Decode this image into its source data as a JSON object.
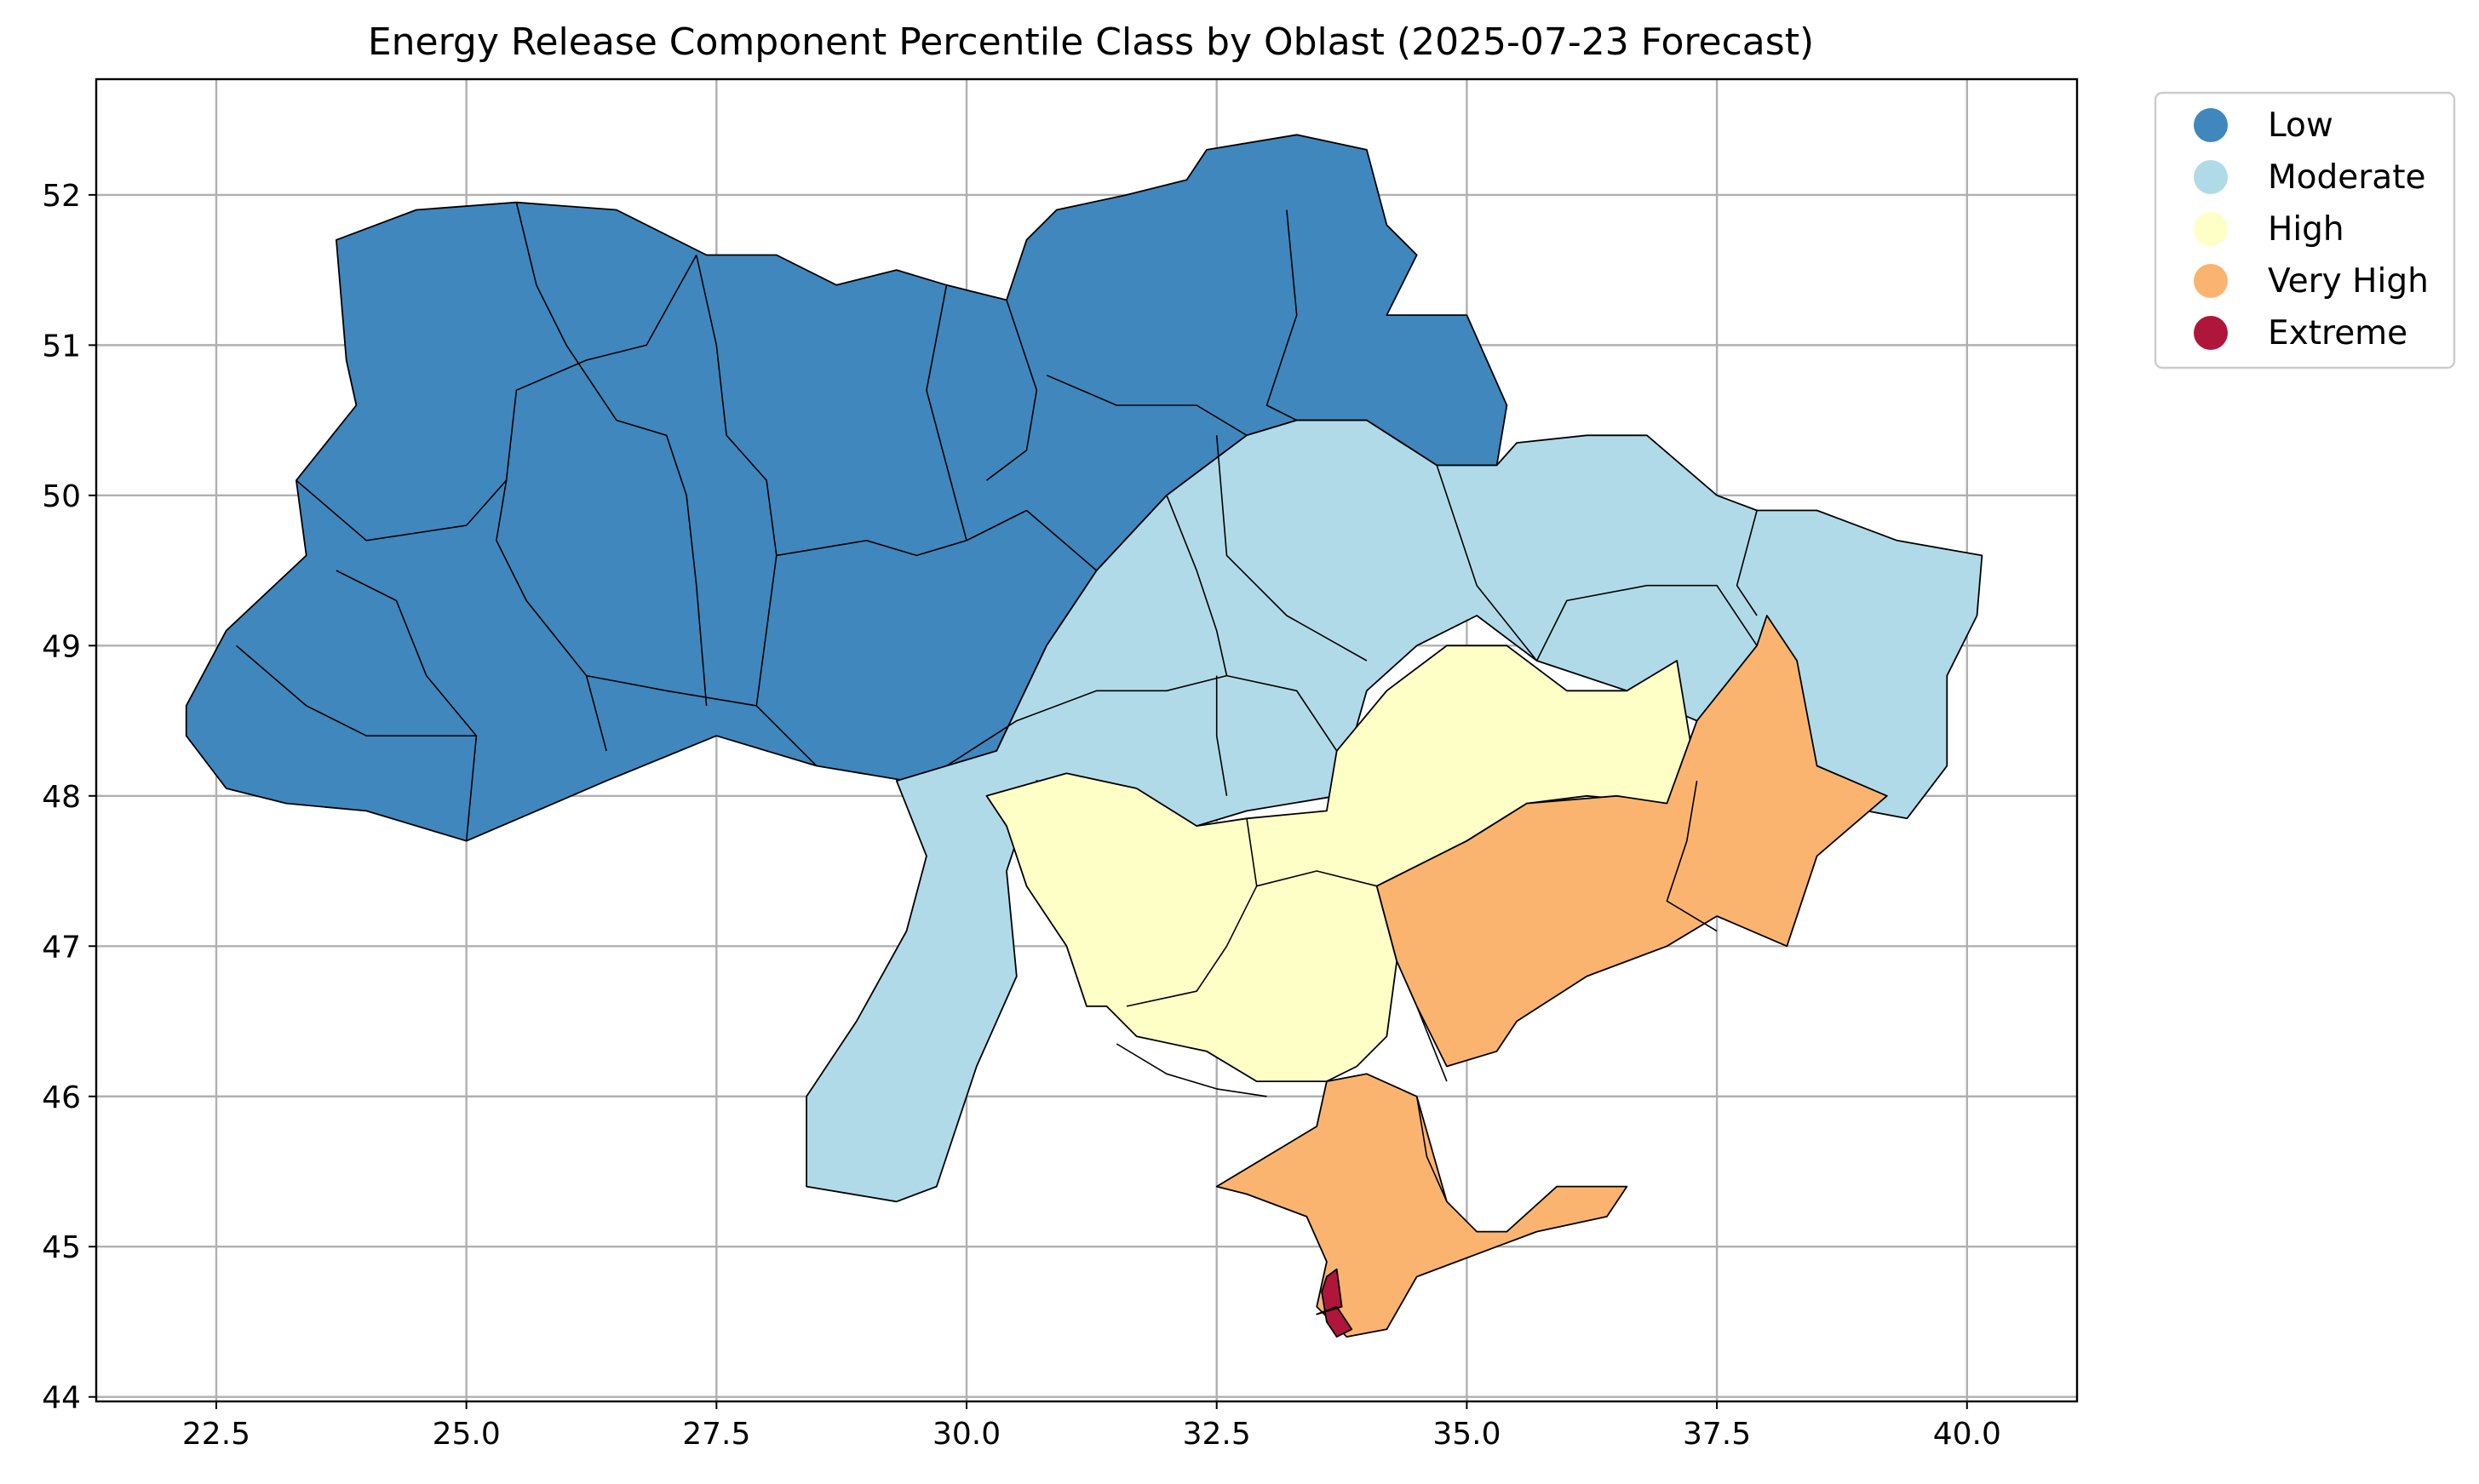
{
  "title": "Energy Release Component Percentile Class by Oblast (2025-07-23 Forecast)",
  "axes": {
    "x_ticks": [
      "22.5",
      "25.0",
      "27.5",
      "30.0",
      "32.5",
      "35.0",
      "37.5",
      "40.0"
    ],
    "y_ticks": [
      "44",
      "45",
      "46",
      "47",
      "48",
      "49",
      "50",
      "51",
      "52"
    ]
  },
  "legend": {
    "placement": "outside upper-right",
    "items": [
      {
        "label": "Low",
        "color": "#4087bd"
      },
      {
        "label": "Moderate",
        "color": "#b1dae9"
      },
      {
        "label": "High",
        "color": "#fefec7"
      },
      {
        "label": "Very High",
        "color": "#fbb46f"
      },
      {
        "label": "Extreme",
        "color": "#b0163c"
      }
    ]
  },
  "chart_data": {
    "type": "choropleth",
    "title": "Energy Release Component Percentile Class by Oblast (2025-07-23 Forecast)",
    "xlim": [
      21.3,
      41.1
    ],
    "ylim": [
      43.97,
      52.77
    ],
    "x_ticks": [
      22.5,
      25.0,
      27.5,
      30.0,
      32.5,
      35.0,
      37.5,
      40.0
    ],
    "y_ticks": [
      44,
      45,
      46,
      47,
      48,
      49,
      50,
      51,
      52
    ],
    "grid": true,
    "legend_position": "outside upper-right",
    "classes": [
      "Low",
      "Moderate",
      "High",
      "Very High",
      "Extreme"
    ],
    "regions": [
      {
        "class": "Low",
        "color": "#4087bd",
        "coords": [
          [
            22.2,
            48.6
          ],
          [
            22.6,
            49.1
          ],
          [
            23.4,
            49.6
          ],
          [
            23.3,
            50.1
          ],
          [
            23.9,
            50.6
          ],
          [
            23.8,
            50.9
          ],
          [
            23.7,
            51.7
          ],
          [
            24.5,
            51.9
          ],
          [
            25.5,
            51.95
          ],
          [
            26.5,
            51.9
          ],
          [
            27.4,
            51.6
          ],
          [
            28.1,
            51.6
          ],
          [
            28.7,
            51.4
          ],
          [
            29.3,
            51.5
          ],
          [
            29.8,
            51.4
          ],
          [
            30.4,
            51.3
          ],
          [
            30.6,
            51.7
          ],
          [
            30.9,
            51.9
          ],
          [
            31.6,
            52.0
          ],
          [
            32.2,
            52.1
          ],
          [
            32.4,
            52.3
          ],
          [
            33.3,
            52.4
          ],
          [
            34.0,
            52.3
          ],
          [
            34.2,
            51.8
          ],
          [
            34.5,
            51.6
          ],
          [
            34.2,
            51.2
          ],
          [
            35.0,
            51.2
          ],
          [
            35.4,
            50.6
          ],
          [
            35.3,
            50.2
          ],
          [
            34.7,
            50.2
          ],
          [
            34.0,
            50.5
          ],
          [
            33.3,
            50.5
          ],
          [
            32.8,
            50.4
          ],
          [
            32.0,
            50.0
          ],
          [
            31.3,
            49.5
          ],
          [
            30.8,
            49.0
          ],
          [
            30.3,
            48.3
          ],
          [
            29.4,
            48.1
          ],
          [
            28.5,
            48.2
          ],
          [
            27.5,
            48.4
          ],
          [
            26.4,
            48.1
          ],
          [
            25.7,
            47.9
          ],
          [
            25.0,
            47.7
          ],
          [
            24.0,
            47.9
          ],
          [
            23.2,
            47.95
          ],
          [
            22.6,
            48.05
          ],
          [
            22.2,
            48.4
          ]
        ]
      },
      {
        "class": "Moderate",
        "color": "#b1dae9",
        "coords": [
          [
            30.3,
            48.3
          ],
          [
            30.8,
            49.0
          ],
          [
            31.3,
            49.5
          ],
          [
            32.0,
            50.0
          ],
          [
            32.8,
            50.4
          ],
          [
            33.3,
            50.5
          ],
          [
            34.0,
            50.5
          ],
          [
            34.7,
            50.2
          ],
          [
            35.3,
            50.2
          ],
          [
            35.5,
            50.35
          ],
          [
            36.2,
            50.4
          ],
          [
            36.8,
            50.4
          ],
          [
            37.5,
            50.0
          ],
          [
            37.9,
            49.9
          ],
          [
            38.5,
            49.9
          ],
          [
            39.3,
            49.7
          ],
          [
            40.15,
            49.6
          ],
          [
            40.1,
            49.2
          ],
          [
            39.8,
            48.8
          ],
          [
            39.8,
            48.2
          ],
          [
            39.4,
            47.85
          ],
          [
            38.2,
            48.0
          ],
          [
            37.8,
            47.8
          ],
          [
            37.3,
            48.5
          ],
          [
            36.6,
            48.7
          ],
          [
            35.7,
            48.9
          ],
          [
            35.1,
            49.2
          ],
          [
            34.5,
            49.0
          ],
          [
            34.0,
            48.7
          ],
          [
            33.7,
            48.0
          ],
          [
            32.8,
            47.9
          ],
          [
            32.3,
            47.8
          ],
          [
            31.3,
            48.0
          ],
          [
            30.7,
            48.1
          ],
          [
            30.4,
            47.5
          ],
          [
            30.5,
            46.8
          ],
          [
            30.1,
            46.2
          ],
          [
            29.7,
            45.4
          ],
          [
            29.3,
            45.3
          ],
          [
            28.4,
            45.4
          ],
          [
            28.4,
            46.0
          ],
          [
            28.9,
            46.5
          ],
          [
            29.4,
            47.1
          ],
          [
            29.6,
            47.6
          ],
          [
            29.3,
            48.1
          ],
          [
            29.8,
            48.2
          ]
        ]
      },
      {
        "class": "High",
        "color": "#fefec7",
        "coords": [
          [
            30.2,
            48.0
          ],
          [
            31.0,
            48.15
          ],
          [
            31.7,
            48.05
          ],
          [
            32.3,
            47.8
          ],
          [
            32.8,
            47.85
          ],
          [
            33.6,
            47.9
          ],
          [
            33.7,
            48.3
          ],
          [
            34.2,
            48.7
          ],
          [
            34.8,
            49.0
          ],
          [
            35.4,
            49.0
          ],
          [
            36.0,
            48.7
          ],
          [
            36.6,
            48.7
          ],
          [
            37.1,
            48.9
          ],
          [
            37.3,
            48.1
          ],
          [
            37.0,
            47.95
          ],
          [
            36.2,
            48.0
          ],
          [
            35.6,
            47.95
          ],
          [
            35.0,
            47.7
          ],
          [
            34.1,
            47.4
          ],
          [
            34.3,
            46.9
          ],
          [
            34.2,
            46.4
          ],
          [
            33.9,
            46.2
          ],
          [
            33.6,
            46.1
          ],
          [
            32.9,
            46.1
          ],
          [
            32.4,
            46.3
          ],
          [
            31.7,
            46.4
          ],
          [
            31.4,
            46.6
          ],
          [
            31.2,
            46.6
          ],
          [
            31.0,
            47.0
          ],
          [
            30.6,
            47.4
          ],
          [
            30.4,
            47.8
          ]
        ]
      },
      {
        "class": "Very High",
        "color": "#fbb46f",
        "coords": [
          [
            34.1,
            47.4
          ],
          [
            35.0,
            47.7
          ],
          [
            35.6,
            47.95
          ],
          [
            36.5,
            48.0
          ],
          [
            37.0,
            47.95
          ],
          [
            37.3,
            48.5
          ],
          [
            37.9,
            49.0
          ],
          [
            38.0,
            49.2
          ],
          [
            38.3,
            48.9
          ],
          [
            38.5,
            48.2
          ],
          [
            39.2,
            48.0
          ],
          [
            38.5,
            47.6
          ],
          [
            38.2,
            47.0
          ],
          [
            37.5,
            47.2
          ],
          [
            37.0,
            47.0
          ],
          [
            36.2,
            46.8
          ],
          [
            35.5,
            46.5
          ],
          [
            35.3,
            46.3
          ],
          [
            34.8,
            46.2
          ],
          [
            34.5,
            46.6
          ],
          [
            34.3,
            46.9
          ]
        ]
      },
      {
        "class": "Very High",
        "color": "#fbb46f",
        "coords": [
          [
            32.5,
            45.4
          ],
          [
            33.0,
            45.6
          ],
          [
            33.5,
            45.8
          ],
          [
            33.6,
            46.1
          ],
          [
            34.0,
            46.15
          ],
          [
            34.5,
            46.0
          ],
          [
            34.8,
            45.3
          ],
          [
            35.1,
            45.1
          ],
          [
            35.4,
            45.1
          ],
          [
            35.9,
            45.4
          ],
          [
            36.6,
            45.4
          ],
          [
            36.4,
            45.2
          ],
          [
            35.7,
            45.1
          ],
          [
            35.3,
            45.0
          ],
          [
            34.5,
            44.8
          ],
          [
            34.2,
            44.45
          ],
          [
            33.8,
            44.4
          ],
          [
            33.5,
            44.6
          ],
          [
            33.6,
            44.9
          ],
          [
            33.4,
            45.2
          ],
          [
            32.8,
            45.35
          ]
        ]
      },
      {
        "class": "Extreme",
        "color": "#b0163c",
        "coords": [
          [
            33.5,
            44.55
          ],
          [
            33.7,
            44.6
          ],
          [
            33.85,
            44.45
          ],
          [
            33.7,
            44.4
          ],
          [
            33.6,
            44.5
          ],
          [
            33.55,
            44.7
          ],
          [
            33.6,
            44.8
          ],
          [
            33.7,
            44.85
          ],
          [
            33.75,
            44.6
          ]
        ]
      }
    ],
    "boundaries": [
      [
        [
          23.3,
          50.1
        ],
        [
          24.0,
          49.7
        ],
        [
          25.0,
          49.8
        ],
        [
          25.4,
          50.1
        ],
        [
          25.5,
          50.7
        ],
        [
          26.2,
          50.9
        ],
        [
          26.8,
          51.0
        ],
        [
          27.3,
          51.6
        ]
      ],
      [
        [
          25.5,
          51.95
        ],
        [
          25.7,
          51.4
        ],
        [
          26.0,
          51.0
        ],
        [
          26.5,
          50.5
        ]
      ],
      [
        [
          23.7,
          49.5
        ],
        [
          24.3,
          49.3
        ],
        [
          24.6,
          48.8
        ],
        [
          25.1,
          48.4
        ],
        [
          25.0,
          47.7
        ]
      ],
      [
        [
          22.7,
          49.0
        ],
        [
          23.4,
          48.6
        ],
        [
          24.0,
          48.4
        ],
        [
          25.1,
          48.4
        ]
      ],
      [
        [
          25.4,
          50.1
        ],
        [
          25.3,
          49.7
        ],
        [
          25.6,
          49.3
        ],
        [
          26.2,
          48.8
        ],
        [
          26.4,
          48.3
        ]
      ],
      [
        [
          26.2,
          48.8
        ],
        [
          27.0,
          48.7
        ],
        [
          27.9,
          48.6
        ],
        [
          28.5,
          48.2
        ]
      ],
      [
        [
          26.5,
          50.5
        ],
        [
          27.0,
          50.4
        ],
        [
          27.2,
          50.0
        ],
        [
          27.3,
          49.4
        ],
        [
          27.4,
          48.6
        ]
      ],
      [
        [
          27.3,
          51.6
        ],
        [
          27.5,
          51.0
        ],
        [
          27.6,
          50.4
        ],
        [
          28.0,
          50.1
        ],
        [
          28.1,
          49.6
        ],
        [
          27.9,
          48.6
        ]
      ],
      [
        [
          28.1,
          49.6
        ],
        [
          29.0,
          49.7
        ],
        [
          29.5,
          49.6
        ],
        [
          30.0,
          49.7
        ],
        [
          30.6,
          49.9
        ],
        [
          31.3,
          49.5
        ]
      ],
      [
        [
          29.8,
          51.4
        ],
        [
          29.6,
          50.7
        ],
        [
          29.8,
          50.2
        ],
        [
          30.0,
          49.7
        ]
      ],
      [
        [
          30.4,
          51.3
        ],
        [
          30.7,
          50.7
        ],
        [
          30.6,
          50.3
        ],
        [
          30.2,
          50.1
        ]
      ],
      [
        [
          30.8,
          50.8
        ],
        [
          31.5,
          50.6
        ],
        [
          32.3,
          50.6
        ],
        [
          32.8,
          50.4
        ]
      ],
      [
        [
          33.2,
          51.9
        ],
        [
          33.3,
          51.2
        ],
        [
          33.0,
          50.6
        ],
        [
          33.3,
          50.5
        ]
      ],
      [
        [
          32.0,
          50.0
        ],
        [
          32.3,
          49.5
        ],
        [
          32.5,
          49.1
        ],
        [
          32.6,
          48.8
        ]
      ],
      [
        [
          29.8,
          48.2
        ],
        [
          30.5,
          48.5
        ],
        [
          31.3,
          48.7
        ],
        [
          32.0,
          48.7
        ],
        [
          32.6,
          48.8
        ],
        [
          33.3,
          48.7
        ],
        [
          33.7,
          48.3
        ]
      ],
      [
        [
          32.5,
          48.8
        ],
        [
          32.5,
          48.4
        ],
        [
          32.6,
          48.0
        ]
      ],
      [
        [
          32.5,
          50.4
        ],
        [
          32.6,
          49.6
        ],
        [
          33.2,
          49.2
        ],
        [
          34.0,
          48.9
        ]
      ],
      [
        [
          34.7,
          50.2
        ],
        [
          34.9,
          49.8
        ],
        [
          35.1,
          49.4
        ],
        [
          35.7,
          48.9
        ]
      ],
      [
        [
          35.7,
          48.9
        ],
        [
          36.0,
          49.3
        ],
        [
          36.8,
          49.4
        ],
        [
          37.5,
          49.4
        ],
        [
          37.9,
          49.0
        ]
      ],
      [
        [
          37.9,
          49.9
        ],
        [
          37.7,
          49.4
        ],
        [
          37.9,
          49.2
        ]
      ],
      [
        [
          32.8,
          47.85
        ],
        [
          32.9,
          47.4
        ],
        [
          32.6,
          47.0
        ],
        [
          32.3,
          46.7
        ],
        [
          31.6,
          46.6
        ]
      ],
      [
        [
          32.9,
          47.4
        ],
        [
          33.5,
          47.5
        ],
        [
          34.1,
          47.4
        ]
      ],
      [
        [
          37.3,
          48.1
        ],
        [
          37.2,
          47.7
        ],
        [
          37.0,
          47.3
        ],
        [
          37.5,
          47.1
        ]
      ],
      [
        [
          34.5,
          46.6
        ],
        [
          34.8,
          46.1
        ]
      ],
      [
        [
          34.5,
          46.0
        ],
        [
          34.6,
          45.6
        ],
        [
          34.8,
          45.3
        ]
      ],
      [
        [
          31.5,
          46.35
        ],
        [
          32.0,
          46.15
        ],
        [
          32.5,
          46.05
        ],
        [
          33.0,
          46.0
        ]
      ]
    ]
  }
}
